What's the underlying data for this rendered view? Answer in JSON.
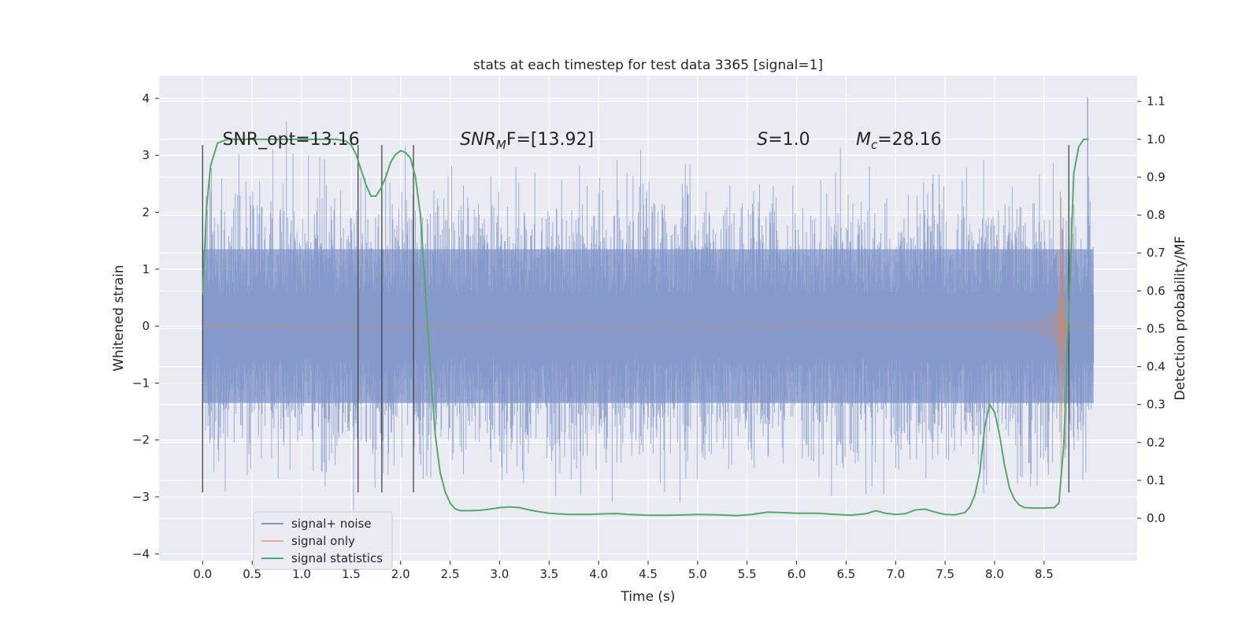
{
  "chart_data": {
    "type": "line",
    "title": "stats at each timestep for test data 3365 [signal=1]",
    "xlabel": "Time (s)",
    "ylabel": "Whitened strain",
    "y2label": "Detection probability/MF",
    "xlim": [
      -0.44,
      9.44
    ],
    "ylim": [
      -4.12,
      4.4
    ],
    "y2lim": [
      -0.112,
      1.168
    ],
    "x_ticks": [
      0.0,
      0.5,
      1.0,
      1.5,
      2.0,
      2.5,
      3.0,
      3.5,
      4.0,
      4.5,
      5.0,
      5.5,
      6.0,
      6.5,
      7.0,
      7.5,
      8.0,
      8.5
    ],
    "x_tick_labels": [
      "0.0",
      "0.5",
      "1.0",
      "1.5",
      "2.0",
      "2.5",
      "3.0",
      "3.5",
      "4.0",
      "4.5",
      "5.0",
      "5.5",
      "6.0",
      "6.5",
      "7.0",
      "7.5",
      "8.0",
      "8.5"
    ],
    "y_ticks": [
      4,
      3,
      2,
      1,
      0,
      -1,
      -2,
      -3,
      -4
    ],
    "y_tick_labels": [
      "4",
      "3",
      "2",
      "1",
      "0",
      "−1",
      "−2",
      "−3",
      "−4"
    ],
    "y2_ticks": [
      1.1,
      1.0,
      0.9,
      0.8,
      0.7,
      0.6,
      0.5,
      0.4,
      0.3,
      0.2,
      0.1,
      0.0
    ],
    "y2_tick_labels": [
      "1.1",
      "1.0",
      "0.9",
      "0.8",
      "0.7",
      "0.6",
      "0.5",
      "0.4",
      "0.3",
      "0.2",
      "0.1",
      "0.0"
    ],
    "grid": true,
    "legend_position": "lower-left",
    "series": [
      {
        "name": "signal+ noise",
        "color": "#8096c8",
        "description_type": "noise",
        "x_range": [
          0.0,
          9.0
        ],
        "band_rms": 1.35,
        "peak": 4.02
      },
      {
        "name": "signal only",
        "color": "#dd8452",
        "description_type": "chirp",
        "x_range": [
          0.0,
          9.0
        ],
        "merger_time": 8.67,
        "peak_amplitude": 2.9
      },
      {
        "name": "signal statistics",
        "color": "#55a868",
        "axis": "right",
        "x": [
          0.0,
          0.04,
          0.08,
          0.15,
          0.25,
          0.4,
          0.6,
          0.8,
          1.0,
          1.2,
          1.35,
          1.45,
          1.5,
          1.55,
          1.6,
          1.65,
          1.7,
          1.75,
          1.8,
          1.85,
          1.9,
          1.95,
          2.0,
          2.05,
          2.1,
          2.15,
          2.2,
          2.25,
          2.3,
          2.35,
          2.4,
          2.45,
          2.5,
          2.55,
          2.6,
          2.7,
          2.8,
          2.9,
          3.0,
          3.1,
          3.2,
          3.3,
          3.4,
          3.5,
          3.7,
          3.9,
          4.1,
          4.2,
          4.3,
          4.5,
          4.7,
          4.9,
          5.0,
          5.2,
          5.4,
          5.55,
          5.7,
          5.85,
          6.0,
          6.2,
          6.4,
          6.55,
          6.7,
          6.8,
          6.9,
          7.0,
          7.1,
          7.2,
          7.3,
          7.4,
          7.5,
          7.6,
          7.7,
          7.75,
          7.8,
          7.85,
          7.9,
          7.95,
          8.0,
          8.05,
          8.1,
          8.15,
          8.2,
          8.25,
          8.3,
          8.4,
          8.5,
          8.6,
          8.65,
          8.7,
          8.75,
          8.8,
          8.85,
          8.9,
          8.95
        ],
        "y": [
          0.59,
          0.82,
          0.93,
          0.99,
          1.0,
          1.0,
          1.0,
          1.0,
          1.0,
          1.0,
          1.0,
          0.995,
          0.985,
          0.96,
          0.92,
          0.88,
          0.85,
          0.85,
          0.87,
          0.9,
          0.94,
          0.96,
          0.97,
          0.965,
          0.95,
          0.9,
          0.8,
          0.6,
          0.4,
          0.22,
          0.12,
          0.07,
          0.04,
          0.025,
          0.02,
          0.02,
          0.021,
          0.024,
          0.028,
          0.03,
          0.028,
          0.022,
          0.017,
          0.013,
          0.01,
          0.01,
          0.012,
          0.012,
          0.01,
          0.008,
          0.008,
          0.009,
          0.01,
          0.009,
          0.007,
          0.01,
          0.016,
          0.015,
          0.013,
          0.013,
          0.01,
          0.008,
          0.012,
          0.02,
          0.013,
          0.01,
          0.012,
          0.022,
          0.024,
          0.016,
          0.01,
          0.009,
          0.015,
          0.03,
          0.06,
          0.12,
          0.24,
          0.3,
          0.28,
          0.22,
          0.14,
          0.08,
          0.05,
          0.035,
          0.028,
          0.027,
          0.027,
          0.028,
          0.04,
          0.2,
          0.55,
          0.91,
          0.98,
          1.0,
          1.0
        ]
      }
    ],
    "vlines": [
      0.0,
      1.57,
      1.81,
      2.13,
      8.75
    ],
    "vline_span": [
      -2.92,
      3.18
    ],
    "annotations": [
      {
        "text": "SNR_opt=13.16",
        "x": 0.2,
        "y": 3.18
      },
      {
        "text": "SNR_MF=[13.92]",
        "x": 2.6,
        "y": 3.18
      },
      {
        "text": "S=1.0",
        "x": 5.6,
        "y": 3.18
      },
      {
        "text": "M_c=28.16",
        "x": 6.6,
        "y": 3.18
      }
    ]
  }
}
